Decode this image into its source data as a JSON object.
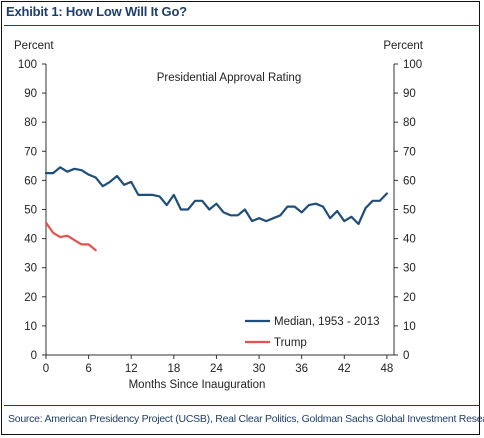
{
  "header": {
    "title": "Exhibit 1: How Low Will It Go?"
  },
  "footer": {
    "source": "Source: American Presidency Project (UCSB), Real Clear Politics, Goldman Sachs Global Investment Research"
  },
  "chart_data": {
    "type": "line",
    "title": "Presidential Approval Rating",
    "xlabel": "Months Since Inauguration",
    "ylabel_left": "Percent",
    "ylabel_right": "Percent",
    "xlim": [
      0,
      49
    ],
    "ylim": [
      0,
      100
    ],
    "xticks": [
      0,
      6,
      12,
      18,
      24,
      30,
      36,
      42,
      48
    ],
    "yticks": [
      0,
      10,
      20,
      30,
      40,
      50,
      60,
      70,
      80,
      90,
      100
    ],
    "legend_position": "bottom-right",
    "grid": false,
    "series": [
      {
        "name": "Median, 1953 - 2013",
        "color": "#1f4e79",
        "x": [
          0,
          1,
          2,
          3,
          4,
          5,
          6,
          7,
          8,
          9,
          10,
          11,
          12,
          13,
          14,
          15,
          16,
          17,
          18,
          19,
          20,
          21,
          22,
          23,
          24,
          25,
          26,
          27,
          28,
          29,
          30,
          31,
          32,
          33,
          34,
          35,
          36,
          37,
          38,
          39,
          40,
          41,
          42,
          43,
          44,
          45,
          46,
          47,
          48
        ],
        "values": [
          62.5,
          62.5,
          64.5,
          63,
          64,
          63.5,
          62,
          61,
          58,
          59.5,
          61.5,
          58.5,
          59.5,
          55,
          55,
          55,
          54.5,
          51.5,
          55,
          50,
          50,
          53,
          53,
          50,
          52,
          49,
          48,
          48,
          50,
          46,
          47,
          46,
          47,
          48,
          51,
          51,
          49,
          51.5,
          52,
          51,
          47,
          49.5,
          46,
          47.5,
          45,
          50.5,
          53,
          53,
          55.5
        ]
      },
      {
        "name": "Trump",
        "color": "#e8504b",
        "x": [
          0,
          1,
          2,
          3,
          4,
          5,
          6,
          7
        ],
        "values": [
          45.5,
          42,
          40.5,
          41,
          39.5,
          38,
          38,
          36
        ]
      }
    ]
  }
}
